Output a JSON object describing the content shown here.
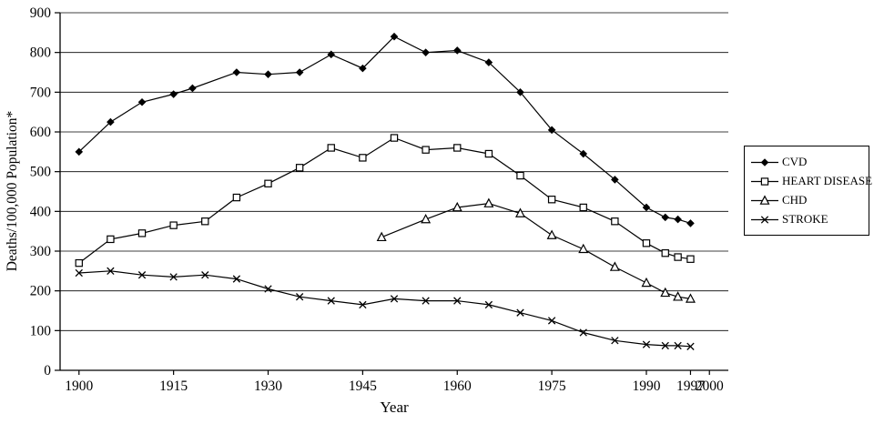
{
  "chart_data": {
    "type": "line",
    "title": "",
    "xlabel": "Year",
    "ylabel": "Deaths/100,000 Population*",
    "xlim": [
      1897,
      2003
    ],
    "ylim": [
      0,
      900
    ],
    "xticks": [
      1900,
      1915,
      1930,
      1945,
      1960,
      1975,
      1990,
      1997,
      2000
    ],
    "yticks": [
      0,
      100,
      200,
      300,
      400,
      500,
      600,
      700,
      800,
      900
    ],
    "grid": "horizontal",
    "legend_position": "right-outside",
    "series": [
      {
        "name": "CVD",
        "marker": "diamond",
        "points": [
          [
            1900,
            550
          ],
          [
            1905,
            625
          ],
          [
            1910,
            675
          ],
          [
            1915,
            695
          ],
          [
            1918,
            710
          ],
          [
            1925,
            750
          ],
          [
            1930,
            745
          ],
          [
            1935,
            750
          ],
          [
            1940,
            795
          ],
          [
            1945,
            760
          ],
          [
            1950,
            840
          ],
          [
            1955,
            800
          ],
          [
            1960,
            805
          ],
          [
            1965,
            775
          ],
          [
            1970,
            700
          ],
          [
            1975,
            605
          ],
          [
            1980,
            545
          ],
          [
            1985,
            480
          ],
          [
            1990,
            410
          ],
          [
            1993,
            385
          ],
          [
            1995,
            380
          ],
          [
            1997,
            370
          ]
        ]
      },
      {
        "name": "HEART DISEASE",
        "marker": "square",
        "points": [
          [
            1900,
            270
          ],
          [
            1905,
            330
          ],
          [
            1910,
            345
          ],
          [
            1915,
            365
          ],
          [
            1920,
            375
          ],
          [
            1925,
            435
          ],
          [
            1930,
            470
          ],
          [
            1935,
            510
          ],
          [
            1940,
            560
          ],
          [
            1945,
            535
          ],
          [
            1950,
            585
          ],
          [
            1955,
            555
          ],
          [
            1960,
            560
          ],
          [
            1965,
            545
          ],
          [
            1970,
            490
          ],
          [
            1975,
            430
          ],
          [
            1980,
            410
          ],
          [
            1985,
            375
          ],
          [
            1990,
            320
          ],
          [
            1993,
            295
          ],
          [
            1995,
            285
          ],
          [
            1997,
            280
          ]
        ]
      },
      {
        "name": "CHD",
        "marker": "triangle",
        "points": [
          [
            1948,
            335
          ],
          [
            1955,
            380
          ],
          [
            1960,
            410
          ],
          [
            1965,
            420
          ],
          [
            1970,
            395
          ],
          [
            1975,
            340
          ],
          [
            1980,
            305
          ],
          [
            1985,
            260
          ],
          [
            1990,
            220
          ],
          [
            1993,
            195
          ],
          [
            1995,
            185
          ],
          [
            1997,
            180
          ]
        ]
      },
      {
        "name": "STROKE",
        "marker": "x",
        "points": [
          [
            1900,
            245
          ],
          [
            1905,
            250
          ],
          [
            1910,
            240
          ],
          [
            1915,
            235
          ],
          [
            1920,
            240
          ],
          [
            1925,
            230
          ],
          [
            1930,
            205
          ],
          [
            1935,
            185
          ],
          [
            1940,
            175
          ],
          [
            1945,
            165
          ],
          [
            1950,
            180
          ],
          [
            1955,
            175
          ],
          [
            1960,
            175
          ],
          [
            1965,
            165
          ],
          [
            1970,
            145
          ],
          [
            1975,
            125
          ],
          [
            1980,
            95
          ],
          [
            1985,
            75
          ],
          [
            1990,
            65
          ],
          [
            1993,
            62
          ],
          [
            1995,
            62
          ],
          [
            1997,
            60
          ]
        ]
      }
    ]
  }
}
